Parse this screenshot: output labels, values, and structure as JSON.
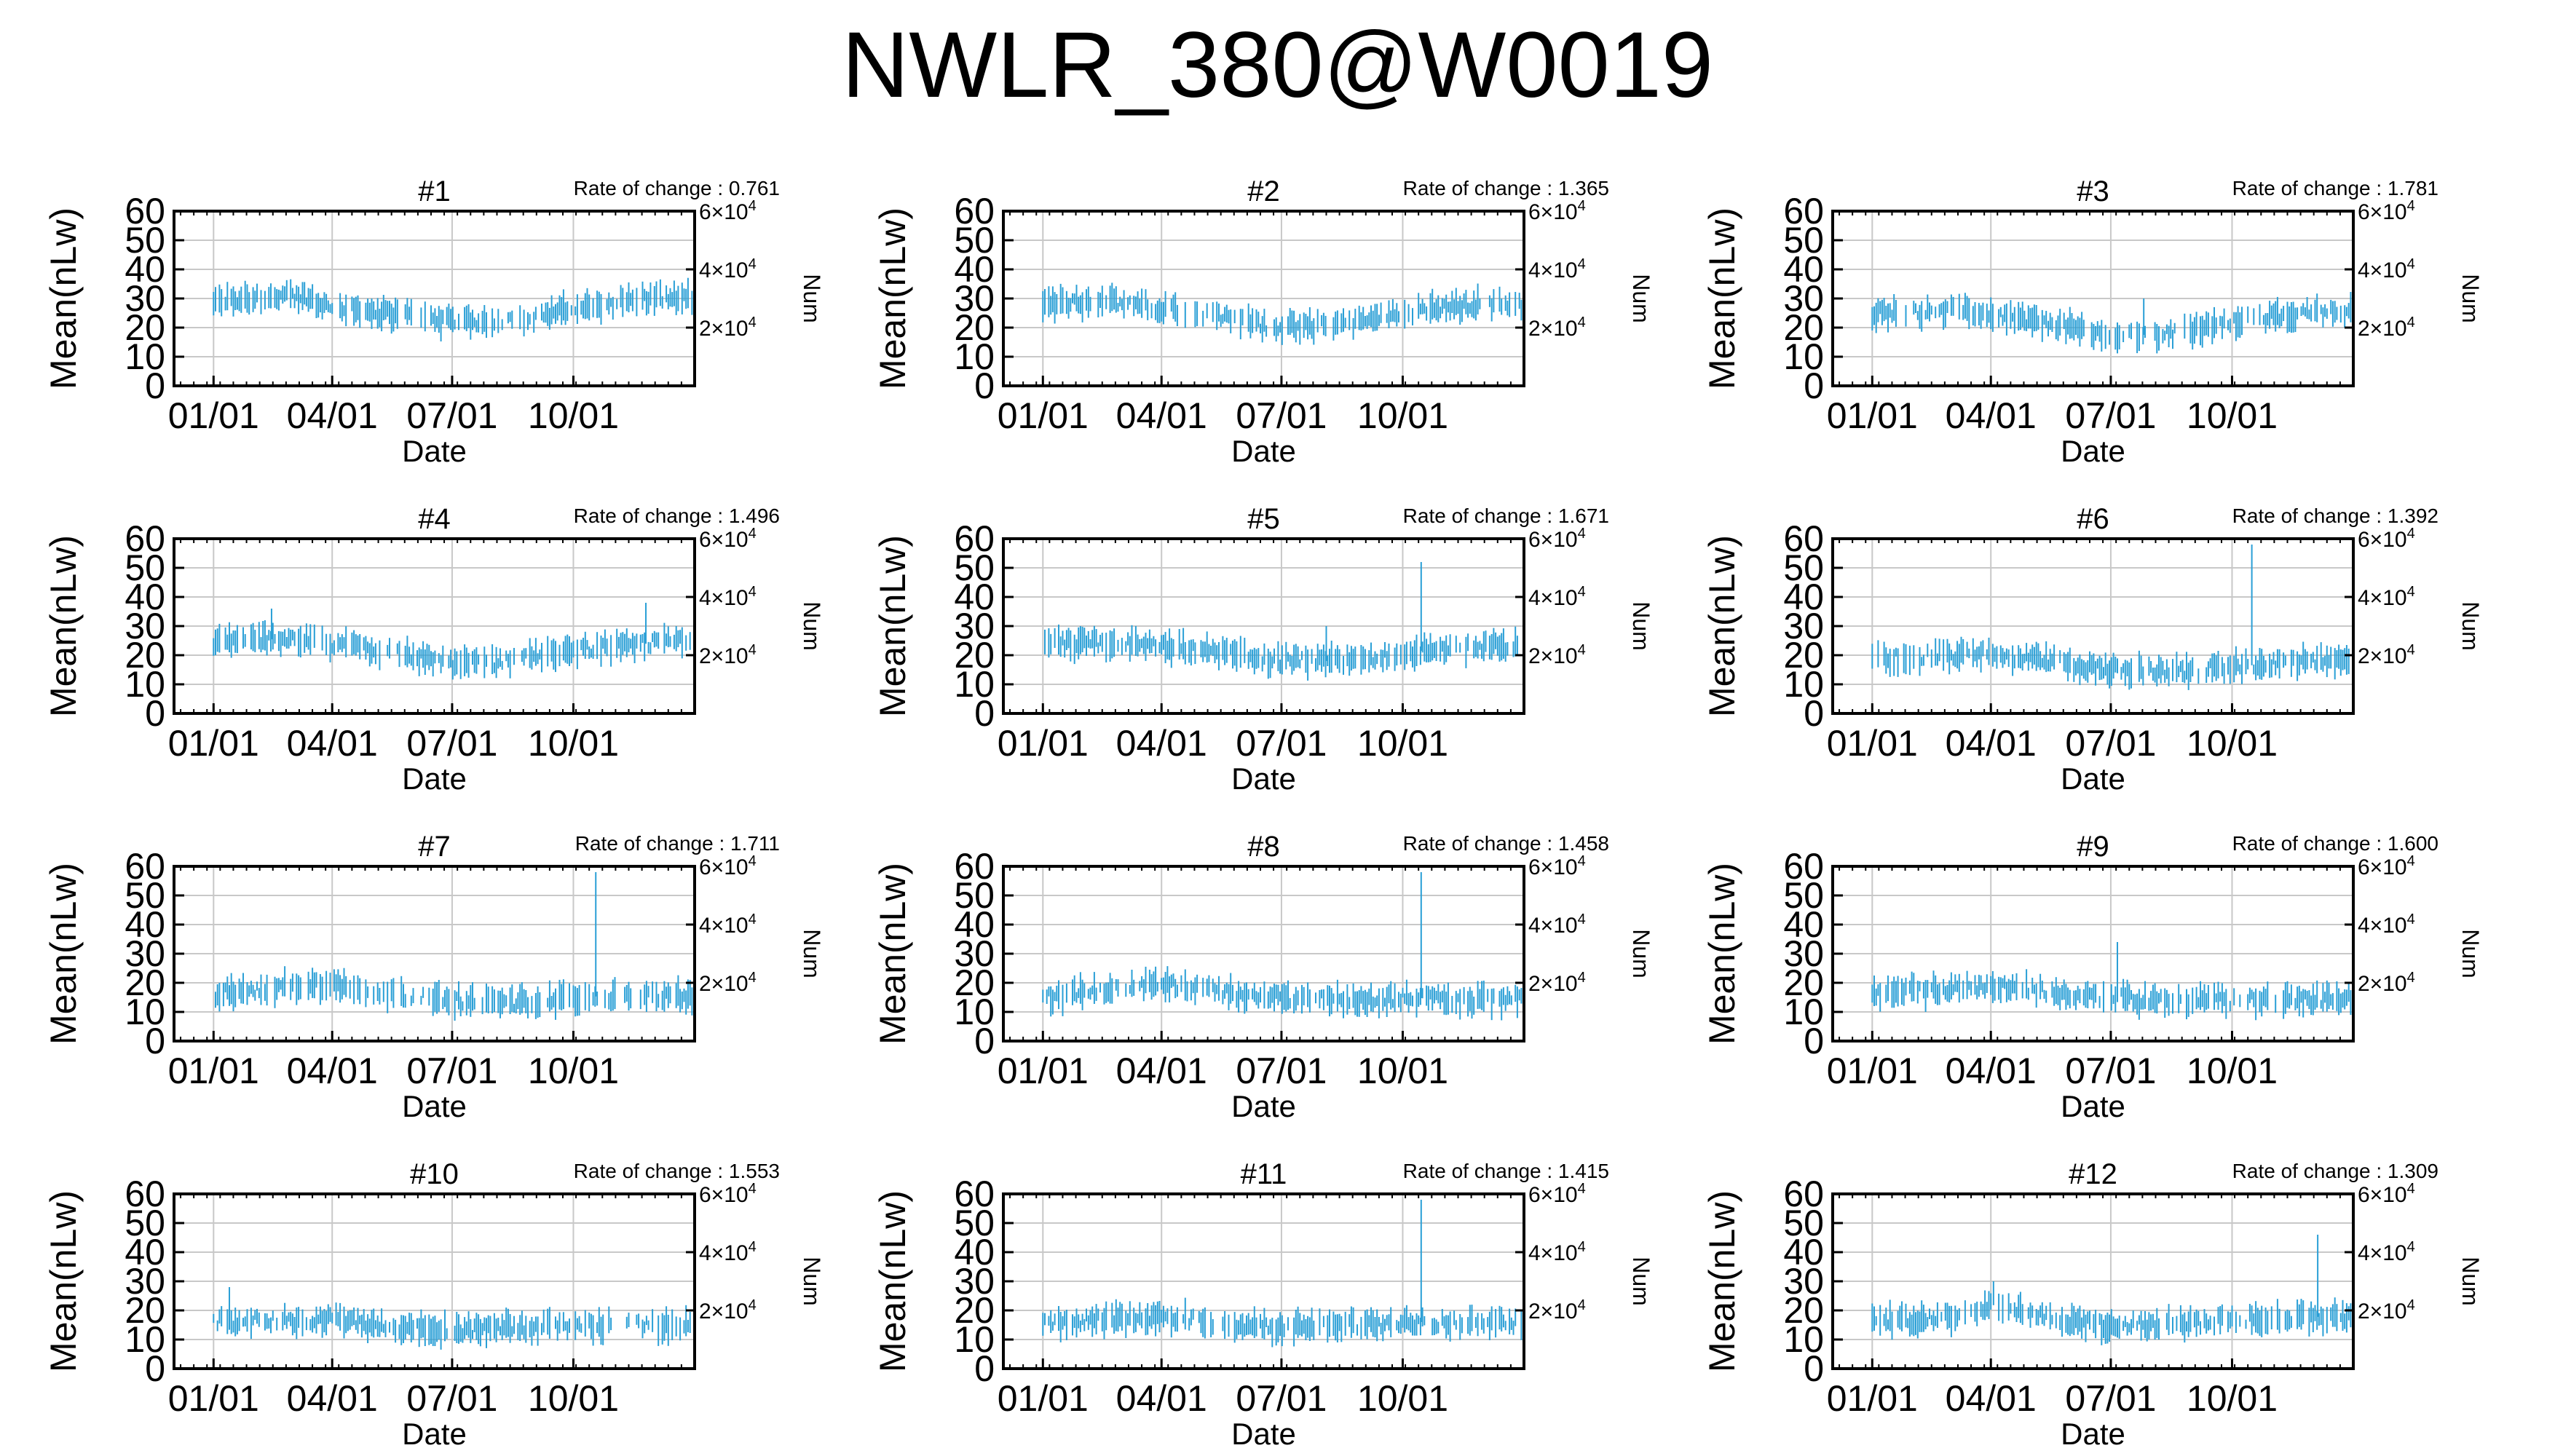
{
  "title": "NWLR_380@W0019",
  "colors": {
    "series": "#2a9fd6",
    "grid": "#c8c8c8",
    "axis": "#000000"
  },
  "chart_data": {
    "type": "line",
    "panel_count": 12,
    "x_tick_labels": [
      "01/01",
      "04/01",
      "07/01",
      "10/01"
    ],
    "x_tick_days": [
      0,
      90,
      181,
      273
    ],
    "xlim_days": [
      -30,
      365
    ],
    "xlabel": "Date",
    "ylabel": "Mean(nLw)",
    "ylim": [
      0,
      60
    ],
    "y_ticks": [
      0,
      10,
      20,
      30,
      40,
      50,
      60
    ],
    "y2label": "Num",
    "y2_ticks": [
      {
        "base": "2",
        "exp": "4"
      },
      {
        "base": "4",
        "exp": "4"
      },
      {
        "base": "6",
        "exp": "4"
      }
    ],
    "y2_tick_values": [
      20000,
      40000,
      60000
    ],
    "y2lim": [
      0,
      60000
    ],
    "grid": true,
    "panels": [
      {
        "label": "#1",
        "rate_label": "Rate of change : 0.761",
        "profile": [
          [
            0,
            29
          ],
          [
            60,
            31
          ],
          [
            90,
            27
          ],
          [
            150,
            24
          ],
          [
            181,
            22
          ],
          [
            230,
            22
          ],
          [
            273,
            27
          ],
          [
            330,
            30
          ],
          [
            365,
            30
          ]
        ],
        "spikes": []
      },
      {
        "label": "#2",
        "rate_label": "Rate of change : 1.365",
        "profile": [
          [
            0,
            28
          ],
          [
            60,
            29
          ],
          [
            90,
            27
          ],
          [
            150,
            22
          ],
          [
            181,
            20
          ],
          [
            230,
            21
          ],
          [
            273,
            25
          ],
          [
            330,
            28
          ],
          [
            365,
            28
          ]
        ],
        "spikes": []
      },
      {
        "label": "#3",
        "rate_label": "Rate of change : 1.781",
        "profile": [
          [
            0,
            25
          ],
          [
            60,
            26
          ],
          [
            90,
            25
          ],
          [
            150,
            20
          ],
          [
            181,
            17
          ],
          [
            230,
            18
          ],
          [
            273,
            22
          ],
          [
            330,
            25
          ],
          [
            365,
            26
          ]
        ],
        "spikes": [
          [
            206,
            30
          ]
        ]
      },
      {
        "label": "#4",
        "rate_label": "Rate of change : 1.496",
        "profile": [
          [
            0,
            24
          ],
          [
            60,
            26
          ],
          [
            90,
            24
          ],
          [
            150,
            20
          ],
          [
            181,
            17
          ],
          [
            230,
            18
          ],
          [
            273,
            22
          ],
          [
            330,
            24
          ],
          [
            365,
            25
          ]
        ],
        "spikes": [
          [
            44,
            36
          ],
          [
            328,
            38
          ]
        ]
      },
      {
        "label": "#5",
        "rate_label": "Rate of change : 1.671",
        "profile": [
          [
            0,
            24
          ],
          [
            60,
            24
          ],
          [
            90,
            23
          ],
          [
            150,
            20
          ],
          [
            181,
            18
          ],
          [
            230,
            18
          ],
          [
            273,
            21
          ],
          [
            330,
            23
          ],
          [
            365,
            23
          ]
        ],
        "spikes": [
          [
            287,
            52
          ],
          [
            215,
            30
          ]
        ]
      },
      {
        "label": "#6",
        "rate_label": "Rate of change : 1.392",
        "profile": [
          [
            0,
            19
          ],
          [
            60,
            20
          ],
          [
            90,
            21
          ],
          [
            150,
            17
          ],
          [
            181,
            15
          ],
          [
            230,
            14
          ],
          [
            273,
            16
          ],
          [
            330,
            18
          ],
          [
            365,
            18
          ]
        ],
        "spikes": [
          [
            288,
            58
          ]
        ]
      },
      {
        "label": "#7",
        "rate_label": "Rate of change : 1.711",
        "profile": [
          [
            0,
            16
          ],
          [
            60,
            19
          ],
          [
            90,
            20
          ],
          [
            150,
            15
          ],
          [
            181,
            14
          ],
          [
            230,
            13
          ],
          [
            273,
            15
          ],
          [
            330,
            16
          ],
          [
            365,
            15
          ]
        ],
        "spikes": [
          [
            290,
            58
          ]
        ]
      },
      {
        "label": "#8",
        "rate_label": "Rate of change : 1.458",
        "profile": [
          [
            0,
            15
          ],
          [
            60,
            18
          ],
          [
            90,
            20
          ],
          [
            150,
            16
          ],
          [
            181,
            15
          ],
          [
            230,
            14
          ],
          [
            273,
            15
          ],
          [
            330,
            14
          ],
          [
            365,
            15
          ]
        ],
        "spikes": [
          [
            287,
            58
          ]
        ]
      },
      {
        "label": "#9",
        "rate_label": "Rate of change : 1.600",
        "profile": [
          [
            0,
            16
          ],
          [
            60,
            18
          ],
          [
            90,
            19
          ],
          [
            150,
            16
          ],
          [
            181,
            15
          ],
          [
            230,
            14
          ],
          [
            273,
            14
          ],
          [
            330,
            14
          ],
          [
            365,
            15
          ]
        ],
        "spikes": [
          [
            186,
            34
          ]
        ]
      },
      {
        "label": "#10",
        "rate_label": "Rate of change : 1.553",
        "profile": [
          [
            0,
            16
          ],
          [
            60,
            17
          ],
          [
            90,
            17
          ],
          [
            150,
            14
          ],
          [
            181,
            13
          ],
          [
            230,
            14
          ],
          [
            273,
            15
          ],
          [
            330,
            15
          ],
          [
            365,
            15
          ]
        ],
        "spikes": [
          [
            12,
            28
          ]
        ]
      },
      {
        "label": "#11",
        "rate_label": "Rate of change : 1.415",
        "profile": [
          [
            0,
            16
          ],
          [
            60,
            17
          ],
          [
            90,
            18
          ],
          [
            150,
            15
          ],
          [
            181,
            14
          ],
          [
            230,
            15
          ],
          [
            273,
            16
          ],
          [
            330,
            16
          ],
          [
            365,
            16
          ]
        ],
        "spikes": [
          [
            287,
            58
          ]
        ]
      },
      {
        "label": "#12",
        "rate_label": "Rate of change : 1.309",
        "profile": [
          [
            0,
            16
          ],
          [
            60,
            18
          ],
          [
            90,
            22
          ],
          [
            150,
            16
          ],
          [
            181,
            15
          ],
          [
            230,
            15
          ],
          [
            273,
            17
          ],
          [
            330,
            18
          ],
          [
            365,
            17
          ]
        ],
        "spikes": [
          [
            92,
            30
          ],
          [
            338,
            46
          ]
        ]
      }
    ]
  }
}
